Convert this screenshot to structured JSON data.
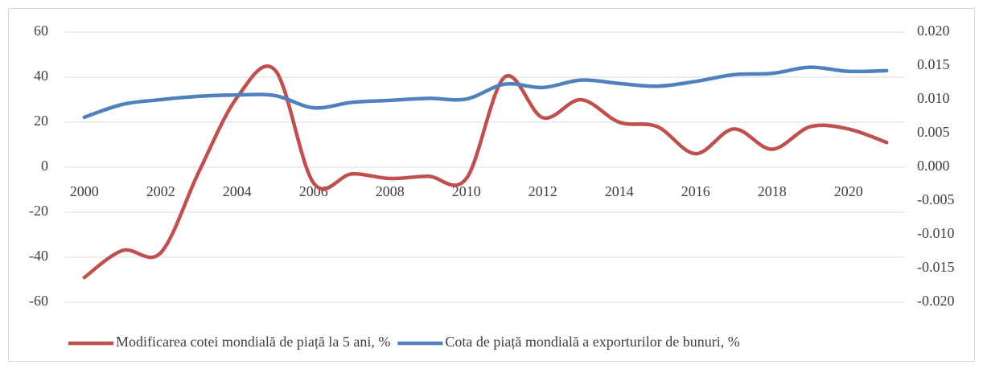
{
  "chart_data": {
    "type": "line",
    "categories": [
      "2000",
      null,
      "2002",
      null,
      "2004",
      null,
      "2006",
      null,
      "2008",
      null,
      "2010",
      null,
      "2012",
      null,
      "2014",
      null,
      "2016",
      null,
      "2018",
      null,
      "2020",
      null
    ],
    "series": [
      {
        "name": "Modificarea cotei mondială de piață la 5 ani, %",
        "color": "#c0504d",
        "values": [
          -49,
          -37,
          -38,
          -2,
          31,
          43,
          -7,
          -3,
          -5,
          -4,
          -5,
          40,
          22,
          30,
          20,
          18,
          6,
          17,
          8,
          18,
          17,
          11
        ]
      },
      {
        "name": "Cota de piață mondială a exporturilor de bunuri, %",
        "color": "#4f81bd",
        "axis": "y2",
        "values": [
          0.0074,
          0.0093,
          0.01,
          0.0105,
          0.0107,
          0.0106,
          0.0088,
          0.0096,
          0.0099,
          0.0102,
          0.0101,
          0.0123,
          0.0118,
          0.0129,
          0.0124,
          0.012,
          0.0127,
          0.0137,
          0.0139,
          0.0148,
          0.0142,
          0.0143
        ]
      }
    ],
    "ylim": [
      -60,
      60
    ],
    "yticks": [
      -60,
      -40,
      -20,
      0,
      20,
      40,
      60
    ],
    "y2lim": [
      -0.02,
      0.02
    ],
    "y2ticks": [
      {
        "value": -0.02,
        "label": "-0.020"
      },
      {
        "value": -0.015,
        "label": "-0.015"
      },
      {
        "value": -0.01,
        "label": "-0.010"
      },
      {
        "value": -0.005,
        "label": "-0.005"
      },
      {
        "value": 0,
        "label": "0.000"
      },
      {
        "value": 0.005,
        "label": "0.005"
      },
      {
        "value": 0.01,
        "label": "0.010"
      },
      {
        "value": 0.015,
        "label": "0.015"
      },
      {
        "value": 0.02,
        "label": "0.020"
      }
    ],
    "grid": true,
    "legend": "bottom",
    "smooth": true
  }
}
